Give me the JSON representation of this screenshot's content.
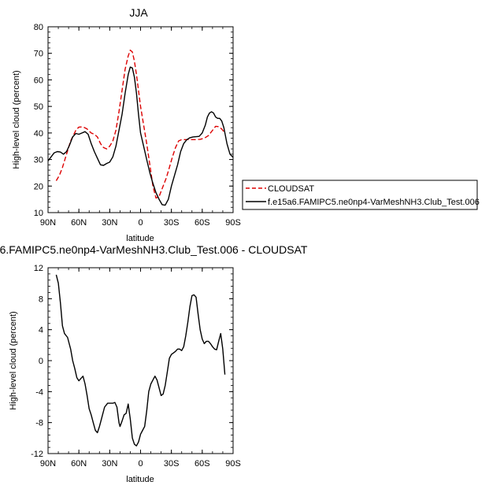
{
  "chart_data": [
    {
      "type": "line",
      "title": "JJA",
      "xlabel": "latitude",
      "ylabel": "High-level cloud (percent)",
      "xlim": [
        90,
        -90
      ],
      "ylim": [
        10,
        80
      ],
      "x_ticks": [
        90,
        60,
        30,
        0,
        -30,
        -60,
        -90
      ],
      "x_tick_labels": [
        "90N",
        "60N",
        "30N",
        "0",
        "30S",
        "60S",
        "90S"
      ],
      "y_ticks": [
        10,
        20,
        30,
        40,
        50,
        60,
        70,
        80
      ],
      "y_tick_labels": [
        "10",
        "20",
        "30",
        "40",
        "50",
        "60",
        "70",
        "80"
      ],
      "legend_position": "right",
      "series": [
        {
          "name": "CLOUDSAT",
          "color": "#dd0000",
          "dashed": true,
          "x": [
            82,
            79,
            76,
            72,
            68,
            63,
            60,
            56,
            52,
            48,
            45,
            42,
            39,
            36,
            33,
            30,
            27,
            24,
            21,
            18,
            15,
            12,
            10,
            8,
            6,
            4,
            2,
            0,
            -3,
            -6,
            -9,
            -12,
            -15,
            -18,
            -20,
            -22,
            -25,
            -28,
            -31,
            -34,
            -37,
            -40,
            -43,
            -46,
            -50,
            -54,
            -58,
            -62,
            -66,
            -70,
            -73,
            -76,
            -79,
            -82
          ],
          "y": [
            22,
            24,
            27,
            32,
            37,
            41,
            42.2,
            42.3,
            41.5,
            40,
            39.5,
            38.5,
            36,
            34.5,
            34,
            35,
            37,
            41,
            48,
            56,
            64,
            69,
            71.2,
            70.5,
            67,
            62,
            56,
            50,
            43,
            36,
            28,
            20,
            15.5,
            16,
            18,
            20,
            23,
            27,
            31,
            34.5,
            37,
            37.5,
            37.5,
            37.5,
            37.5,
            37.5,
            37.6,
            38,
            39,
            41,
            42.5,
            42.4,
            41.5,
            40
          ]
        },
        {
          "name": "f.e15a6.FAMIPC5.ne0np4-VarMeshNH3.Club_Test.006",
          "color": "#000000",
          "dashed": false,
          "x": [
            90,
            87,
            84,
            81,
            78,
            75,
            72,
            69,
            66,
            63,
            60,
            57,
            54,
            51,
            48,
            45,
            42,
            39,
            36,
            33,
            30,
            27,
            24,
            21,
            18,
            15,
            12,
            10,
            8,
            6,
            4,
            2,
            0,
            -3,
            -6,
            -9,
            -12,
            -15,
            -18,
            -21,
            -24,
            -27,
            -30,
            -33,
            -36,
            -39,
            -42,
            -45,
            -48,
            -51,
            -54,
            -57,
            -60,
            -63,
            -65,
            -67,
            -69,
            -71,
            -73,
            -75,
            -77,
            -79,
            -81,
            -84,
            -87,
            -90
          ],
          "y": [
            29.5,
            31,
            32.5,
            33,
            32.8,
            32,
            33,
            35.5,
            38.5,
            39.8,
            39.5,
            40,
            40.5,
            39.5,
            36,
            33,
            30.5,
            28,
            27.8,
            28.5,
            29,
            31,
            35,
            41,
            47,
            55,
            62,
            64.8,
            64.5,
            61,
            55,
            47,
            40,
            35,
            30,
            25,
            21,
            17.5,
            15,
            13,
            12.8,
            15,
            20,
            24,
            28,
            33,
            36,
            37.5,
            38.2,
            38.5,
            38.6,
            38.7,
            40,
            43,
            46,
            47.5,
            48,
            47.5,
            46,
            45.5,
            45.5,
            44.5,
            42,
            36,
            32,
            30.8
          ]
        }
      ]
    },
    {
      "type": "line",
      "title": "6.FAMIPC5.ne0np4-VarMeshNH3.Club_Test.006 - CLOUDSAT",
      "xlabel": "latitude",
      "ylabel": "High-level cloud (percent)",
      "xlim": [
        90,
        -90
      ],
      "ylim": [
        -12,
        12
      ],
      "x_ticks": [
        90,
        60,
        30,
        0,
        -30,
        -60,
        -90
      ],
      "x_tick_labels": [
        "90N",
        "60N",
        "30N",
        "0",
        "30S",
        "60S",
        "90S"
      ],
      "y_ticks": [
        -12,
        -8,
        -4,
        0,
        4,
        8,
        12
      ],
      "y_tick_labels": [
        "-12",
        "-8",
        "-4",
        "0",
        "4",
        "8",
        "12"
      ],
      "series": [
        {
          "color": "#000000",
          "dashed": false,
          "x": [
            82,
            80,
            78,
            76,
            74,
            71,
            68,
            66,
            64,
            62,
            60,
            58,
            56,
            54,
            52,
            50,
            48,
            46,
            44,
            42,
            40,
            38,
            35,
            32,
            29,
            27,
            25,
            23,
            21,
            20,
            18,
            16,
            14,
            12,
            10,
            8,
            6,
            4,
            2,
            0,
            -2,
            -4,
            -6,
            -8,
            -10,
            -12,
            -14,
            -16,
            -18,
            -20,
            -22,
            -24,
            -26,
            -28,
            -30,
            -32,
            -34,
            -36,
            -38,
            -40,
            -42,
            -44,
            -46,
            -48,
            -50,
            -52,
            -54,
            -56,
            -58,
            -60,
            -62,
            -64,
            -66,
            -68,
            -70,
            -72,
            -74,
            -76,
            -78,
            -80,
            -82
          ],
          "y": [
            11.1,
            10,
            7.5,
            4.5,
            3.5,
            3,
            1.5,
            0,
            -1,
            -2.2,
            -2.6,
            -2.3,
            -2,
            -3,
            -4.5,
            -6.2,
            -7,
            -8,
            -9,
            -9.3,
            -8.5,
            -7.5,
            -6,
            -5.5,
            -5.5,
            -5.5,
            -5.4,
            -6,
            -8,
            -8.5,
            -7.8,
            -7,
            -6.8,
            -5.6,
            -7.5,
            -10,
            -10.8,
            -11,
            -10.5,
            -9.5,
            -9,
            -8.5,
            -6.5,
            -4,
            -3,
            -2.5,
            -2,
            -2.5,
            -3.5,
            -4.5,
            -4.3,
            -3.2,
            -1.5,
            0.3,
            0.8,
            1,
            1.2,
            1.5,
            1.5,
            1.3,
            1.8,
            3.2,
            5,
            7,
            8.4,
            8.5,
            8.2,
            6,
            4,
            2.8,
            2.2,
            2.5,
            2.5,
            2.2,
            1.8,
            1.5,
            1.4,
            2.5,
            3.5,
            1.5,
            -1.8
          ]
        }
      ]
    }
  ]
}
